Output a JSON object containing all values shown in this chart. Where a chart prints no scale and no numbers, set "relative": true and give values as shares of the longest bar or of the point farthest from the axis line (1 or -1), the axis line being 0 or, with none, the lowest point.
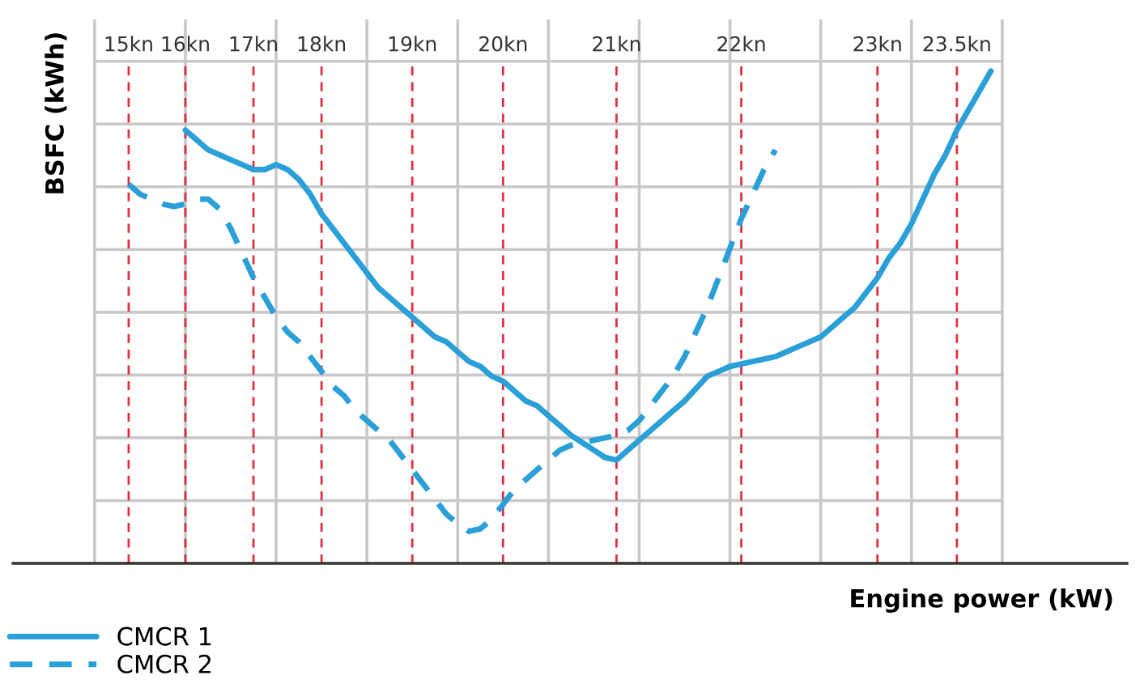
{
  "chart_data": {
    "type": "line",
    "relative": true,
    "xlabel": "Engine power (kW)",
    "ylabel": "BSFC (kWh)",
    "grid": true,
    "legend": "bottom left",
    "marker": "none",
    "categories": [
      null,
      null,
      null,
      "15kn",
      null,
      null,
      null,
      null,
      "16kn",
      null,
      null,
      null,
      null,
      null,
      "17kn",
      null,
      null,
      null,
      null,
      null,
      "18kn",
      null,
      null,
      null,
      null,
      null,
      null,
      null,
      "19kn",
      null,
      null,
      null,
      null,
      null,
      null,
      null,
      "20kn",
      null,
      null,
      null,
      null,
      null,
      null,
      null,
      null,
      null,
      "21kn",
      null,
      null,
      null,
      null,
      null,
      null,
      null,
      null,
      null,
      null,
      "22kn",
      null,
      null,
      null,
      null,
      null,
      null,
      null,
      null,
      null,
      null,
      null,
      "23kn",
      null,
      null,
      null,
      null,
      null,
      null,
      "23.5kn",
      null,
      null,
      null,
      null
    ],
    "series": [
      {
        "name": "CMCR 1",
        "color": "#2a9fd8",
        "line_style": "solid",
        "values": [
          null,
          null,
          null,
          null,
          null,
          null,
          null,
          null,
          0.88,
          0.86,
          0.84,
          0.83,
          0.82,
          0.81,
          0.8,
          0.8,
          0.81,
          0.8,
          0.78,
          0.75,
          0.71,
          0.68,
          0.65,
          0.62,
          0.59,
          0.56,
          0.54,
          0.52,
          0.5,
          0.48,
          0.46,
          0.45,
          0.43,
          0.41,
          0.4,
          0.38,
          0.37,
          0.35,
          0.33,
          0.32,
          0.3,
          0.28,
          0.26,
          0.245,
          0.23,
          0.215,
          0.21,
          0.23,
          0.25,
          0.27,
          0.29,
          0.31,
          0.33,
          0.355,
          0.38,
          0.39,
          0.4,
          0.405,
          0.41,
          0.415,
          0.42,
          0.43,
          0.44,
          0.45,
          0.46,
          0.48,
          0.5,
          0.52,
          0.55,
          0.58,
          0.62,
          0.65,
          0.69,
          0.74,
          0.79,
          0.83,
          0.88,
          0.92,
          0.96,
          1.0,
          null
        ]
      },
      {
        "name": "CMCR 2",
        "color": "#2a9fd8",
        "line_style": "dashed",
        "values": [
          null,
          null,
          null,
          0.77,
          0.75,
          0.74,
          0.73,
          0.725,
          0.73,
          0.74,
          0.74,
          0.72,
          0.68,
          0.63,
          0.58,
          0.54,
          0.5,
          0.47,
          0.45,
          0.42,
          0.39,
          0.36,
          0.34,
          0.31,
          0.29,
          0.27,
          0.25,
          0.22,
          0.19,
          0.16,
          0.13,
          0.1,
          0.08,
          0.065,
          0.07,
          0.09,
          0.12,
          0.15,
          0.17,
          0.19,
          0.21,
          0.23,
          0.24,
          0.245,
          0.25,
          0.255,
          0.26,
          0.27,
          0.29,
          0.32,
          0.35,
          0.38,
          0.42,
          0.47,
          0.52,
          0.58,
          0.64,
          0.7,
          0.75,
          0.8,
          0.84,
          null,
          null,
          null,
          null,
          null,
          null,
          null,
          null,
          null,
          null,
          null,
          null,
          null,
          null,
          null,
          null,
          null,
          null,
          null,
          null
        ]
      }
    ]
  }
}
